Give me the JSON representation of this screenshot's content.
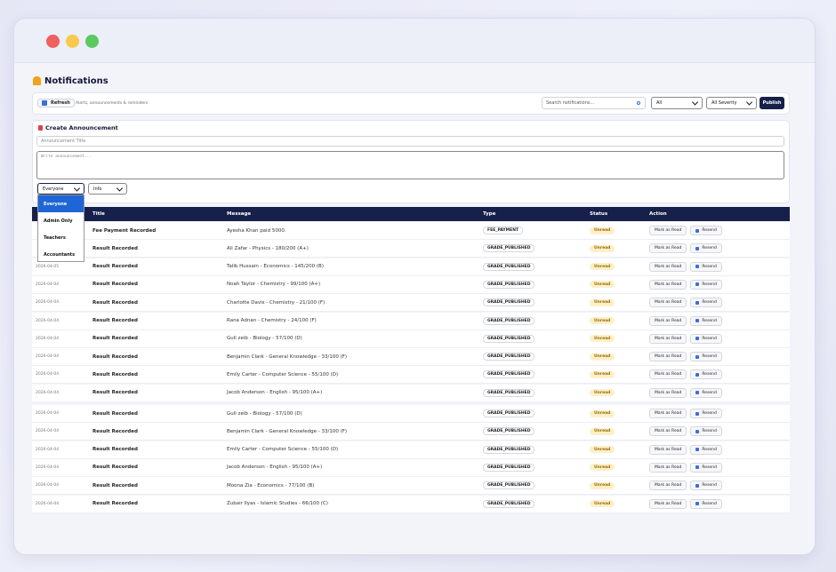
{
  "header": {
    "title": "Notifications"
  },
  "toolbar": {
    "refresh": "Refresh",
    "subtitle": "Alerts, announcements & reminders",
    "search_placeholder": "Search notifications...",
    "filter": "All",
    "severity": "All Severity",
    "publish": "Publish"
  },
  "announcement": {
    "title": "Create Announcement",
    "title_placeholder": "Announcement Title",
    "body_placeholder": "Write announcement...",
    "audience": "Everyone",
    "severity": "Info",
    "audience_options": [
      "Everyone",
      "Admin Only",
      "Teachers",
      "Accountants"
    ]
  },
  "table": {
    "columns": [
      "Title",
      "Message",
      "Type",
      "Status",
      "Action"
    ],
    "actions": [
      "Mark as Read",
      "Resend"
    ],
    "rows": [
      {
        "title": "Fee Payment Recorded",
        "message": "Ayesha Khan paid 5000.",
        "type": "FEE_PAYMENT",
        "status": "Unread"
      },
      {
        "title": "Result Recorded",
        "message": "Ali Zafar - Physics - 180/200 (A+)",
        "type": "GRADE_PUBLISHED",
        "status": "Unread"
      },
      {
        "date": "2026-04-05",
        "title": "Result Recorded",
        "message": "Talib Hussain - Economics - 145/200 (B)",
        "type": "GRADE_PUBLISHED",
        "status": "Unread"
      },
      {
        "date": "2026-04-04",
        "title": "Result Recorded",
        "message": "Noah Taylor - Chemistry - 99/100 (A+)",
        "type": "GRADE_PUBLISHED",
        "status": "Unread"
      },
      {
        "date": "2026-04-04",
        "title": "Result Recorded",
        "message": "Charlotte Davis - Chemistry - 21/100 (F)",
        "type": "GRADE_PUBLISHED",
        "status": "Unread"
      },
      {
        "date": "2026-04-04",
        "title": "Result Recorded",
        "message": "Rana Adnan - Chemistry - 24/100 (F)",
        "type": "GRADE_PUBLISHED",
        "status": "Unread"
      },
      {
        "date": "2026-04-04",
        "title": "Result Recorded",
        "message": "Gull zeib - Biology - 57/100 (D)",
        "type": "GRADE_PUBLISHED",
        "status": "Unread"
      },
      {
        "date": "2026-04-04",
        "title": "Result Recorded",
        "message": "Benjamin Clark - General Knowledge - 33/100 (F)",
        "type": "GRADE_PUBLISHED",
        "status": "Unread"
      },
      {
        "date": "2026-04-04",
        "title": "Result Recorded",
        "message": "Emily Carter - Computer Science - 55/100 (D)",
        "type": "GRADE_PUBLISHED",
        "status": "Unread"
      },
      {
        "date": "2026-04-04",
        "title": "Result Recorded",
        "message": "Jacob Anderson - English - 95/100 (A+)",
        "type": "GRADE_PUBLISHED",
        "status": "Unread"
      },
      {
        "date": "2026-04-04",
        "title": "Result Recorded",
        "message": "Gull zeib - Biology - 57/100 (D)",
        "type": "GRADE_PUBLISHED",
        "status": "Unread"
      },
      {
        "date": "2026-04-04",
        "title": "Result Recorded",
        "message": "Benjamin Clark - General Knowledge - 33/100 (F)",
        "type": "GRADE_PUBLISHED",
        "status": "Unread"
      },
      {
        "date": "2026-04-04",
        "title": "Result Recorded",
        "message": "Emily Carter - Computer Science - 55/100 (D)",
        "type": "GRADE_PUBLISHED",
        "status": "Unread"
      },
      {
        "date": "2026-04-04",
        "title": "Result Recorded",
        "message": "Jacob Anderson - English - 95/100 (A+)",
        "type": "GRADE_PUBLISHED",
        "status": "Unread"
      },
      {
        "date": "2026-04-04",
        "title": "Result Recorded",
        "message": "Moona Zia - Economics - 77/100 (B)",
        "type": "GRADE_PUBLISHED",
        "status": "Unread"
      },
      {
        "date": "2026-04-04",
        "title": "Result Recorded",
        "message": "Zubair Ilyas - Islamic Studies - 66/100 (C)",
        "type": "GRADE_PUBLISHED",
        "status": "Unread"
      }
    ]
  }
}
